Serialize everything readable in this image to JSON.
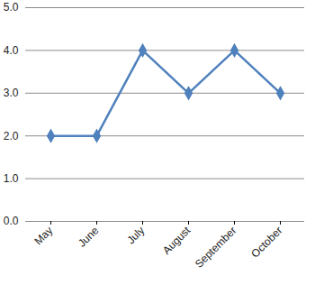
{
  "chart_data": {
    "type": "line",
    "categories": [
      "May",
      "June",
      "July",
      "August",
      "September",
      "October"
    ],
    "values": [
      2,
      2,
      4,
      3,
      4,
      3
    ],
    "color": "#4f81bd",
    "marker": "diamond",
    "ylim": [
      0,
      5
    ],
    "yticks": [
      0,
      1,
      2,
      3,
      4,
      5
    ],
    "grid": true
  }
}
